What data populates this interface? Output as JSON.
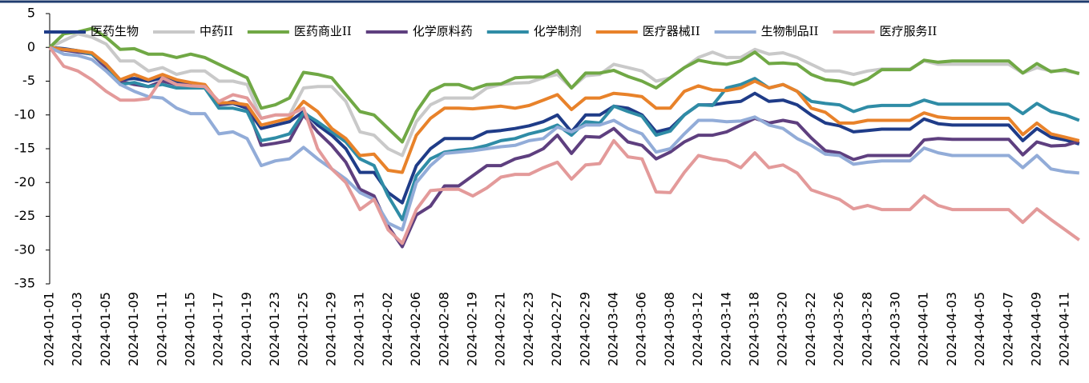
{
  "chart_data": {
    "type": "line",
    "categories": [
      "2024-01-01",
      null,
      "2024-01-03",
      null,
      "2024-01-05",
      null,
      "2024-01-09",
      null,
      "2024-01-11",
      null,
      "2024-01-15",
      null,
      "2024-01-17",
      null,
      "2024-01-19",
      null,
      "2024-01-23",
      null,
      "2024-01-25",
      null,
      "2024-01-29",
      null,
      "2024-01-31",
      null,
      "2024-02-02",
      null,
      "2024-02-06",
      null,
      "2024-02-08",
      null,
      "2024-02-19",
      null,
      "2024-02-21",
      null,
      "2024-02-23",
      null,
      "2024-02-27",
      null,
      "2024-02-29",
      null,
      "2024-03-04",
      null,
      "2024-03-06",
      null,
      "2024-03-08",
      null,
      "2024-03-12",
      null,
      "2024-03-14",
      null,
      "2024-03-18",
      null,
      "2024-03-20",
      null,
      "2024-03-22",
      null,
      "2024-03-26",
      null,
      "2024-03-28",
      null,
      "2024-03-30",
      null,
      "2024-04-01",
      null,
      "2024-04-03",
      null,
      "2024-04-05",
      null,
      "2024-04-07",
      null,
      "2024-04-09",
      null,
      "2024-04-11",
      null
    ],
    "series": [
      {
        "name": "医药生物",
        "color": "#1f3c88",
        "values": [
          0,
          -0.2,
          -0.5,
          -1,
          -2.5,
          -4.8,
          -4.6,
          -5,
          -4.5,
          -5.2,
          -5.5,
          -5.8,
          -8.5,
          -8.3,
          -9,
          -12,
          -11.5,
          -11,
          -9.5,
          -11.5,
          -13,
          -15,
          -18.5,
          -18.5,
          -21.5,
          -23,
          -17.5,
          -15,
          -13.5,
          -13.5,
          -13.5,
          -12.5,
          -12.3,
          -12,
          -11.6,
          -11,
          -10,
          -12.5,
          -10,
          -10,
          -8.7,
          -9,
          -10,
          -12.5,
          -12,
          -10,
          -8.5,
          -8.5,
          -8.2,
          -8,
          -6.8,
          -8,
          -7.8,
          -8.5,
          -10,
          -11.2,
          -11.6,
          -12.5,
          -12.3,
          -12.1,
          -12.1,
          -12.1,
          -10.6,
          -11.3,
          -11.5,
          -11.5,
          -11.5,
          -11.5,
          -11.5,
          -13.8,
          -12,
          -13.3,
          -13.7,
          -14.3
        ]
      },
      {
        "name": "中药II",
        "color": "#c9c9c9",
        "values": [
          0,
          1,
          2,
          1.5,
          0.5,
          -2,
          -2,
          -3.5,
          -3,
          -4,
          -3.5,
          -3.5,
          -5,
          -5,
          -5.5,
          -10.5,
          -10,
          -10,
          -6,
          -5.8,
          -5.8,
          -8,
          -12.5,
          -13,
          -15,
          -16,
          -11,
          -8.5,
          -7.5,
          -7.5,
          -7.5,
          -6,
          -5.5,
          -5.3,
          -5.2,
          -4.5,
          -4,
          -6,
          -4.2,
          -4,
          -2.5,
          -3,
          -3.5,
          -5,
          -4.5,
          -3,
          -1.5,
          -0.7,
          -1.5,
          -1.5,
          -0.3,
          -1,
          -0.8,
          -1.5,
          -2.5,
          -3.5,
          -3.5,
          -4,
          -3.5,
          -3.2,
          -3.2,
          -3.2,
          -2,
          -2.5,
          -2.5,
          -2.5,
          -2.5,
          -2.5,
          -2.5,
          -3.8,
          -3,
          -3.5,
          -3.5,
          -3.8
        ]
      },
      {
        "name": "医药商业II",
        "color": "#70a845",
        "values": [
          0,
          2,
          2.3,
          2.8,
          1.5,
          -0.3,
          -0.2,
          -1,
          -1,
          -1.5,
          -1,
          -1.5,
          -2.5,
          -3.5,
          -4.5,
          -9,
          -8.5,
          -7.5,
          -3.7,
          -4,
          -4.5,
          -7,
          -9.5,
          -10,
          -12,
          -14,
          -9.5,
          -6.5,
          -5.5,
          -5.5,
          -6.2,
          -5.5,
          -5.4,
          -4.5,
          -4.4,
          -4.4,
          -3.4,
          -6,
          -3.8,
          -3.8,
          -3.4,
          -4.3,
          -5,
          -6,
          -4.5,
          -3,
          -1.9,
          -2.3,
          -2.5,
          -2,
          -0.7,
          -2.4,
          -2.3,
          -2.5,
          -4,
          -4.8,
          -5,
          -5.5,
          -4.7,
          -3.3,
          -3.3,
          -3.3,
          -1.9,
          -2.2,
          -2,
          -2,
          -2,
          -2,
          -2,
          -3.8,
          -2.4,
          -3.6,
          -3.3,
          -3.9
        ]
      },
      {
        "name": "化学原料药",
        "color": "#5e3f7f",
        "values": [
          0,
          -0.4,
          -0.7,
          -1,
          -3,
          -5,
          -5.5,
          -5.8,
          -5,
          -5.5,
          -5.5,
          -6,
          -8.5,
          -8,
          -8.8,
          -14.5,
          -14.2,
          -13.8,
          -10,
          -12.5,
          -14.5,
          -17,
          -21,
          -22,
          -26.5,
          -29.5,
          -24.8,
          -23.5,
          -20.5,
          -20.5,
          -19,
          -17.5,
          -17.5,
          -16.5,
          -16,
          -15,
          -13,
          -15.7,
          -13.2,
          -13.3,
          -12,
          -14,
          -14.5,
          -16.5,
          -15.5,
          -14,
          -13,
          -13,
          -12.5,
          -11.5,
          -10.5,
          -11.2,
          -10.8,
          -11.2,
          -13.4,
          -15.3,
          -15.6,
          -16.6,
          -16,
          -16,
          -16,
          -16,
          -13.7,
          -13.5,
          -13.6,
          -13.6,
          -13.6,
          -13.6,
          -13.6,
          -15.9,
          -14,
          -14.6,
          -14.5,
          -13.9
        ]
      },
      {
        "name": "化学制剂",
        "color": "#2f8ca6",
        "values": [
          0,
          -0.3,
          -0.5,
          -1,
          -2.5,
          -5.5,
          -5.2,
          -5.8,
          -5.5,
          -6,
          -6,
          -6,
          -9,
          -9,
          -9.5,
          -13.8,
          -13.4,
          -12.8,
          -9.7,
          -11,
          -12.5,
          -14,
          -16.5,
          -17.5,
          -22,
          -25.5,
          -19,
          -16.5,
          -15.5,
          -15.2,
          -15,
          -14.5,
          -13.8,
          -13.5,
          -12.8,
          -12.3,
          -11.5,
          -13,
          -11,
          -11.2,
          -8.7,
          -9.5,
          -10.2,
          -13,
          -12.4,
          -10,
          -8.5,
          -8.6,
          -6,
          -5.5,
          -4.6,
          -6,
          -5.5,
          -6.5,
          -8,
          -8.3,
          -8.5,
          -9.5,
          -8.8,
          -8.6,
          -8.6,
          -8.6,
          -7.8,
          -8.4,
          -8.4,
          -8.4,
          -8.4,
          -8.4,
          -8.4,
          -9.8,
          -8.3,
          -9.5,
          -10,
          -10.8
        ]
      },
      {
        "name": "医疗器械II",
        "color": "#e8822a",
        "values": [
          0,
          -0.3,
          -0.5,
          -0.8,
          -2.5,
          -4.8,
          -4,
          -4.8,
          -4,
          -4.8,
          -5.2,
          -5.5,
          -8.2,
          -8.2,
          -8.5,
          -11.5,
          -11,
          -10.5,
          -8,
          -9.5,
          -12,
          -13.5,
          -16,
          -15.8,
          -18.2,
          -18.5,
          -13,
          -10.5,
          -9,
          -9,
          -9.1,
          -8.9,
          -8.7,
          -9,
          -8.6,
          -7.8,
          -7,
          -9.2,
          -7.5,
          -7.5,
          -6.8,
          -7,
          -7.3,
          -9,
          -9,
          -6.5,
          -5.7,
          -6.3,
          -6.4,
          -6,
          -5,
          -6,
          -5.5,
          -6.5,
          -9,
          -9.6,
          -11.2,
          -11.2,
          -10.8,
          -10.8,
          -10.8,
          -10.8,
          -9.7,
          -10.3,
          -10.5,
          -10.5,
          -10.5,
          -10.5,
          -10.5,
          -12.9,
          -11.2,
          -12.8,
          -13.3,
          -13.8
        ]
      },
      {
        "name": "生物制品II",
        "color": "#92acd8",
        "values": [
          0,
          -1,
          -1.2,
          -1.8,
          -3.5,
          -5.5,
          -6.5,
          -7.3,
          -7.5,
          -9,
          -9.8,
          -9.8,
          -12.8,
          -12.5,
          -13.5,
          -17.5,
          -16.8,
          -16.5,
          -14.8,
          -16.5,
          -18,
          -19.5,
          -21.5,
          -22.5,
          -26,
          -27,
          -20,
          -17.5,
          -15.7,
          -15.5,
          -15.3,
          -15,
          -14.7,
          -14.5,
          -13.8,
          -13.5,
          -11.8,
          -12.5,
          -11.5,
          -11.5,
          -10.8,
          -12,
          -12.8,
          -15.5,
          -15,
          -12.8,
          -10.8,
          -10.8,
          -11,
          -10.9,
          -10.3,
          -11.5,
          -12,
          -13.5,
          -14.5,
          -15.8,
          -16,
          -17.3,
          -17,
          -16.8,
          -16.8,
          -16.8,
          -14.9,
          -15.6,
          -16,
          -16,
          -16,
          -16,
          -16,
          -17.8,
          -16,
          -18,
          -18.4,
          -18.6
        ]
      },
      {
        "name": "医疗服务II",
        "color": "#e39a9a",
        "values": [
          0,
          -2.8,
          -3.5,
          -4.8,
          -6.5,
          -7.8,
          -7.8,
          -7.6,
          -4.5,
          -5.5,
          -5.7,
          -5.8,
          -8,
          -7,
          -7.5,
          -10.5,
          -10,
          -10,
          -9,
          -15,
          -18,
          -20,
          -24,
          -22.5,
          -27,
          -29,
          -24,
          -21.2,
          -21,
          -21,
          -22,
          -20.8,
          -19.2,
          -18.8,
          -18.8,
          -17.8,
          -17,
          -19.5,
          -17.4,
          -17.2,
          -13.8,
          -16.2,
          -16.5,
          -21.4,
          -21.5,
          -18.5,
          -16,
          -16.5,
          -16.8,
          -17.8,
          -15.6,
          -17.8,
          -17.4,
          -18.6,
          -21.1,
          -21.8,
          -22.5,
          -23.9,
          -23.4,
          -24,
          -24,
          -24,
          -22,
          -23.4,
          -24,
          -24,
          -24,
          -24,
          -24,
          -25.9,
          -23.9,
          -25.5,
          -27,
          -28.5
        ]
      }
    ],
    "ylim": [
      -35,
      5
    ],
    "yticks": [
      5,
      0,
      -5,
      -10,
      -15,
      -20,
      -25,
      -30,
      -35
    ],
    "grid": false,
    "legend": "top"
  }
}
